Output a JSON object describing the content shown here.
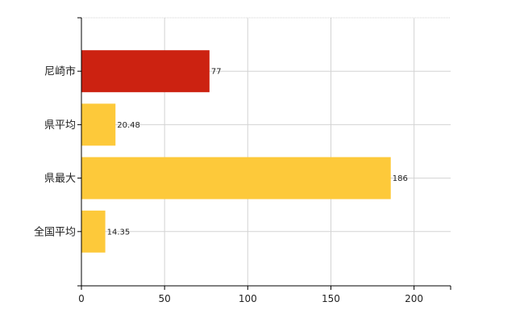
{
  "chart_data": {
    "type": "bar",
    "orientation": "horizontal",
    "categories": [
      "尼崎市",
      "県平均",
      "県最大",
      "全国平均"
    ],
    "values": [
      77,
      20.48,
      186,
      14.35
    ],
    "data_labels": [
      "77",
      "20.48",
      "186",
      "14.35"
    ],
    "highlight_index": 0,
    "xlim": [
      0,
      222
    ],
    "x_ticks": [
      0,
      50,
      100,
      150,
      200
    ],
    "x_tick_labels": [
      "0",
      "50",
      "100",
      "150",
      "200"
    ],
    "grid": true,
    "title": "",
    "xlabel": "",
    "ylabel": ""
  },
  "colors": {
    "highlight": "#cc2211",
    "bar": "#fdc93a",
    "grid": "#d3d3d3",
    "axis": "#000000"
  }
}
